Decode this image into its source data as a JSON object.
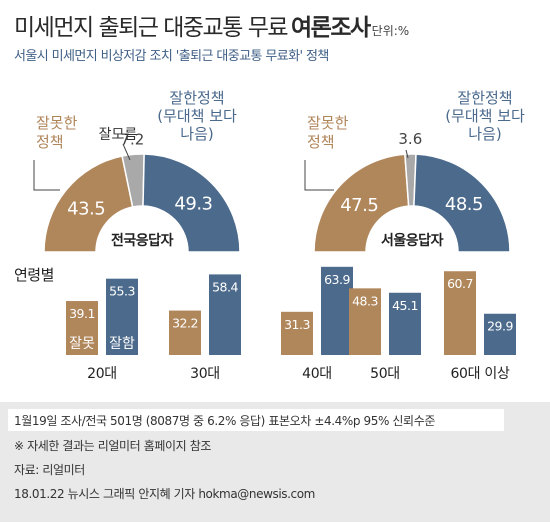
{
  "header": {
    "title_main": "미세먼지 출퇴근 대중교통 무료",
    "title_bold": "여론조사",
    "unit": "단위:%",
    "subtitle": "서울시 미세먼지 비상저감 조치 '출퇴근 대중교통 무료화' 정책"
  },
  "colors": {
    "bad": "#b0865b",
    "good": "#4b6a8c",
    "neutral": "#a9a9a9",
    "footer_bg": "#e9e9e9"
  },
  "chart_data": [
    {
      "type": "pie",
      "title": "전국응답자",
      "categories": [
        "잘못한 정책",
        "잘모름",
        "잘한정책 (무대책 보다 나음)"
      ],
      "values": [
        43.5,
        7.2,
        49.3
      ],
      "labels": {
        "bad": "잘못한\n정책",
        "neutral": "잘모름",
        "good": "잘한정책\n(무대책 보다\n나음)"
      },
      "value_labels": [
        "43.5",
        "7.2",
        "49.3"
      ]
    },
    {
      "type": "pie",
      "title": "서울응답자",
      "categories": [
        "잘못한 정책",
        "잘모름",
        "잘한정책 (무대책 보다 나음)"
      ],
      "values": [
        47.5,
        3.6,
        48.5
      ],
      "labels": {
        "bad": "잘못한\n정책",
        "neutral": "",
        "good": "잘한정책\n(무대책 보다\n나음)"
      },
      "value_labels": [
        "47.5",
        "3.6",
        "48.5"
      ]
    },
    {
      "type": "bar",
      "title": "연령별",
      "categories": [
        "20대",
        "30대",
        "40대",
        "50대",
        "60대 이상"
      ],
      "series": [
        {
          "name": "잘못",
          "values": [
            39.1,
            32.2,
            31.3,
            48.3,
            60.7
          ],
          "labels": [
            "39.1",
            "32.2",
            "31.3",
            "48.3",
            "60.7"
          ]
        },
        {
          "name": "잘함",
          "values": [
            55.3,
            58.4,
            63.9,
            45.1,
            29.9
          ],
          "labels": [
            "55.3",
            "58.4",
            "63.9",
            "45.1",
            "29.9"
          ]
        }
      ]
    }
  ],
  "footer": {
    "line1": "1월19일 조사/전국 501명 (8087명 중 6.2% 응답) 표본오차 ±4.4%p 95% 신뢰수준",
    "line2": "※ 자세한 결과는 리얼미터 홈페이지 참조",
    "line3": "자료: 리얼미터",
    "line4": "18.01.22 뉴시스 그래픽 안지혜 기자 hokma@newsis.com"
  }
}
